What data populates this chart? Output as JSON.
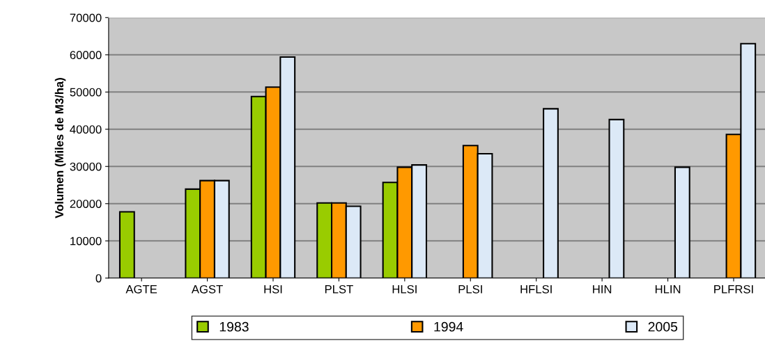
{
  "chart_data": {
    "type": "bar",
    "ylabel": "Volumen (Miles de M3/ha)",
    "categories": [
      "AGTE",
      "AGST",
      "HSI",
      "PLST",
      "HLSI",
      "PLSI",
      "HFLSI",
      "HIN",
      "HLIN",
      "PLFRSI"
    ],
    "series": [
      {
        "name": "1983",
        "color": "#99cc00",
        "values": [
          17800,
          23900,
          48800,
          20200,
          25700,
          null,
          null,
          null,
          null,
          null
        ]
      },
      {
        "name": "1994",
        "color": "#ff9900",
        "values": [
          null,
          26200,
          51300,
          20200,
          29800,
          35600,
          null,
          null,
          null,
          38600
        ]
      },
      {
        "name": "2005",
        "color": "#dce9f7",
        "values": [
          null,
          26200,
          59400,
          19300,
          30400,
          33400,
          45500,
          42600,
          29800,
          63000
        ]
      }
    ],
    "ylim": [
      0,
      70000
    ],
    "yticks": [
      0,
      10000,
      20000,
      30000,
      40000,
      50000,
      60000,
      70000
    ],
    "grid": "y",
    "legend": "bottom"
  }
}
